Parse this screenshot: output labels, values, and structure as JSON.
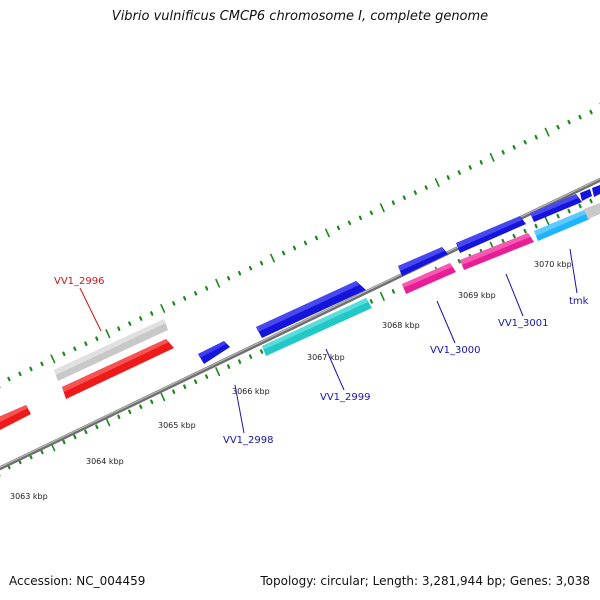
{
  "title": "Vibrio vulnificus CMCP6 chromosome I, complete genome",
  "footer": {
    "accession": "Accession: NC_004459",
    "summary": "Topology: circular; Length: 3,281,944 bp; Genes: 3,038"
  },
  "colors": {
    "backbone": "#8a8a8a",
    "tick_dots": "#1a8a1a",
    "tick_label": "#222222",
    "gene_label_blue": "#1414b4",
    "gene_label_red": "#d21414",
    "cds_blue": "#1414dc",
    "cds_red": "#ee1a1a",
    "cds_cyan": "#22c8c8",
    "cds_magenta": "#e81e96",
    "cds_lightblue": "#1eb4ff",
    "pseudo_gray": "#c8c8c8"
  },
  "ticks": [
    {
      "label": "3063 kbp"
    },
    {
      "label": "3064 kbp"
    },
    {
      "label": "3065 kbp"
    },
    {
      "label": "3066 kbp"
    },
    {
      "label": "3067 kbp"
    },
    {
      "label": "3068 kbp"
    },
    {
      "label": "3069 kbp"
    },
    {
      "label": "3070 kbp"
    }
  ],
  "gene_labels": [
    {
      "text": "VV1_2996",
      "color": "red"
    },
    {
      "text": "VV1_2998",
      "color": "blue"
    },
    {
      "text": "VV1_2999",
      "color": "blue"
    },
    {
      "text": "VV1_3000",
      "color": "blue"
    },
    {
      "text": "VV1_3001",
      "color": "blue"
    },
    {
      "text": "tmk",
      "color": "blue"
    }
  ]
}
